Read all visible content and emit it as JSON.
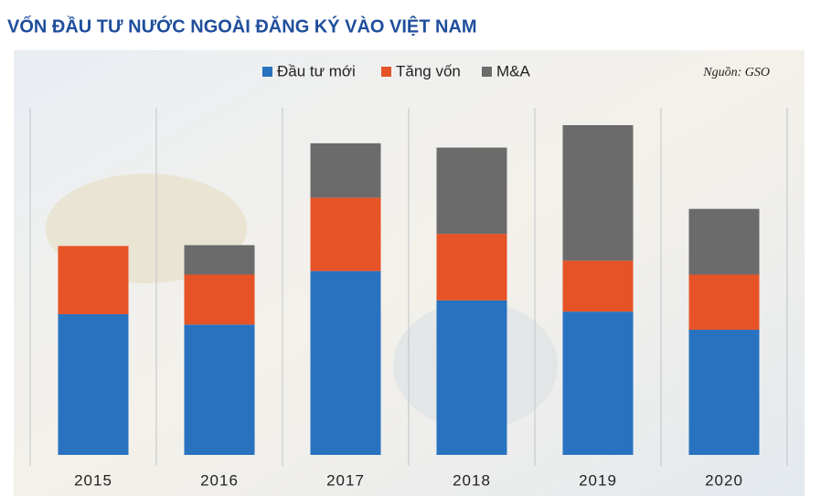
{
  "chart_data": {
    "type": "stacked-bar",
    "title": "VỐN ĐẦU TƯ NƯỚC NGOÀI ĐĂNG KÝ VÀO VIỆT NAM",
    "source": "Nguồn: GSO",
    "categories": [
      "2015",
      "2016",
      "2017",
      "2018",
      "2019",
      "2020"
    ],
    "series": [
      {
        "name": "Đầu tư mới",
        "color": "#2872c0",
        "values": [
          16.3,
          15.1,
          21.3,
          17.9,
          16.6,
          14.5
        ]
      },
      {
        "name": "Tăng vốn",
        "color": "#e65327",
        "values": [
          7.9,
          5.8,
          8.5,
          7.7,
          5.9,
          6.4
        ]
      },
      {
        "name": "M&A",
        "color": "#6b6b6b",
        "values": [
          0,
          3.4,
          6.3,
          10.0,
          15.7,
          7.6
        ]
      }
    ],
    "ylim": [
      0,
      40
    ],
    "grid": true
  }
}
